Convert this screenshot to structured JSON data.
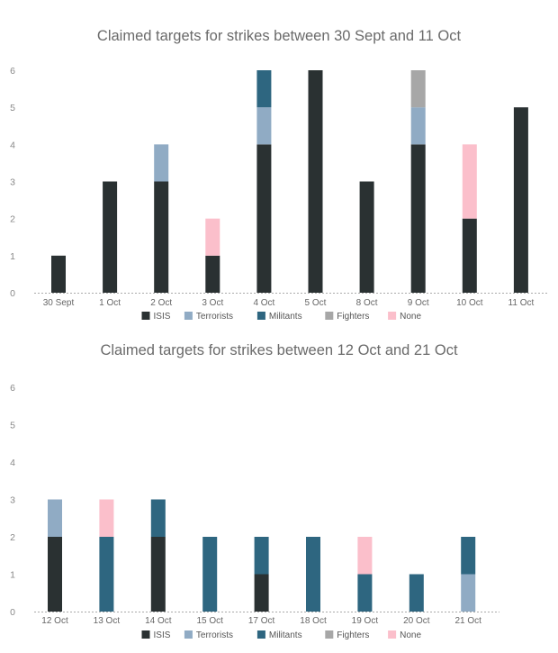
{
  "colors": {
    "ISIS": "#2a3132",
    "Terrorists": "#90abc4",
    "Militants": "#2e6680",
    "Fighters": "#a7a7a7",
    "None": "#fbbfcb"
  },
  "chart_data": [
    {
      "type": "bar",
      "stacked": true,
      "title": "Claimed targets for strikes between 30 Sept and 11 Oct",
      "categories": [
        "30 Sept",
        "1 Oct",
        "2 Oct",
        "3 Oct",
        "4 Oct",
        "5 Oct",
        "8 Oct",
        "9 Oct",
        "10 Oct",
        "11 Oct"
      ],
      "ylim": [
        0,
        6
      ],
      "yticks": [
        0,
        1,
        2,
        3,
        4,
        5,
        6
      ],
      "legend": "bottom",
      "series": [
        {
          "name": "ISIS",
          "values": [
            1,
            3,
            3,
            1,
            4,
            6,
            3,
            4,
            2,
            5
          ]
        },
        {
          "name": "Terrorists",
          "values": [
            0,
            0,
            1,
            0,
            1,
            0,
            0,
            1,
            0,
            0
          ]
        },
        {
          "name": "Militants",
          "values": [
            0,
            0,
            0,
            0,
            1,
            0,
            0,
            0,
            0,
            0
          ]
        },
        {
          "name": "Fighters",
          "values": [
            0,
            0,
            0,
            0,
            0,
            0,
            0,
            1,
            0,
            0
          ]
        },
        {
          "name": "None",
          "values": [
            0,
            0,
            0,
            1,
            0,
            0,
            0,
            0,
            2,
            0
          ]
        }
      ]
    },
    {
      "type": "bar",
      "stacked": true,
      "title": "Claimed targets for strikes between 12 Oct and 21 Oct",
      "categories": [
        "12 Oct",
        "13 Oct",
        "14 Oct",
        "15 Oct",
        "17 Oct",
        "18 Oct",
        "19 Oct",
        "20 Oct",
        "21 Oct"
      ],
      "ylim": [
        0,
        6
      ],
      "yticks": [
        0,
        1,
        2,
        3,
        4,
        5,
        6
      ],
      "legend": "bottom",
      "series": [
        {
          "name": "ISIS",
          "values": [
            2,
            0,
            2,
            0,
            1,
            0,
            0,
            0,
            0
          ]
        },
        {
          "name": "Terrorists",
          "values": [
            1,
            0,
            0,
            0,
            0,
            0,
            0,
            0,
            1
          ]
        },
        {
          "name": "Militants",
          "values": [
            0,
            2,
            1,
            2,
            1,
            2,
            1,
            1,
            1
          ]
        },
        {
          "name": "Fighters",
          "values": [
            0,
            0,
            0,
            0,
            0,
            0,
            0,
            0,
            0
          ]
        },
        {
          "name": "None",
          "values": [
            0,
            1,
            0,
            0,
            0,
            0,
            1,
            0,
            0
          ]
        }
      ]
    }
  ]
}
